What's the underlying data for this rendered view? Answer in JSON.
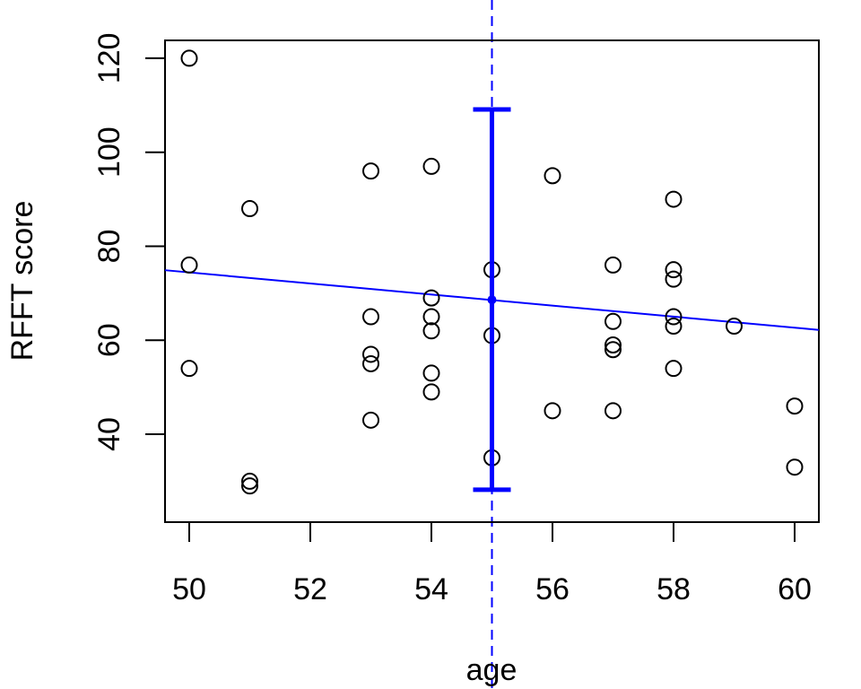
{
  "chart_data": {
    "type": "scatter",
    "title": "",
    "xlabel": "age",
    "ylabel": "RFFT score",
    "xlim": [
      49.6,
      60.4
    ],
    "ylim": [
      21.3,
      123.8
    ],
    "x_ticks": [
      50,
      52,
      54,
      56,
      58,
      60
    ],
    "y_ticks": [
      40,
      60,
      80,
      100,
      120
    ],
    "grid": false,
    "legend": "none",
    "points": [
      {
        "x": 50,
        "y": 120
      },
      {
        "x": 50,
        "y": 76
      },
      {
        "x": 50,
        "y": 54
      },
      {
        "x": 51,
        "y": 88
      },
      {
        "x": 51,
        "y": 30
      },
      {
        "x": 51,
        "y": 29
      },
      {
        "x": 53,
        "y": 96
      },
      {
        "x": 53,
        "y": 65
      },
      {
        "x": 53,
        "y": 57
      },
      {
        "x": 53,
        "y": 55
      },
      {
        "x": 53,
        "y": 43
      },
      {
        "x": 54,
        "y": 97
      },
      {
        "x": 54,
        "y": 69
      },
      {
        "x": 54,
        "y": 65
      },
      {
        "x": 54,
        "y": 62
      },
      {
        "x": 54,
        "y": 53
      },
      {
        "x": 54,
        "y": 49
      },
      {
        "x": 55,
        "y": 75
      },
      {
        "x": 55,
        "y": 61
      },
      {
        "x": 55,
        "y": 35
      },
      {
        "x": 56,
        "y": 95
      },
      {
        "x": 56,
        "y": 45
      },
      {
        "x": 57,
        "y": 76
      },
      {
        "x": 57,
        "y": 64
      },
      {
        "x": 57,
        "y": 59
      },
      {
        "x": 57,
        "y": 58
      },
      {
        "x": 57,
        "y": 45
      },
      {
        "x": 58,
        "y": 90
      },
      {
        "x": 58,
        "y": 75
      },
      {
        "x": 58,
        "y": 73
      },
      {
        "x": 58,
        "y": 65
      },
      {
        "x": 58,
        "y": 63
      },
      {
        "x": 58,
        "y": 54
      },
      {
        "x": 59,
        "y": 63
      },
      {
        "x": 60,
        "y": 46
      },
      {
        "x": 60,
        "y": 33
      }
    ],
    "regression_line": {
      "x_start": 49.6,
      "y_start": 74.9,
      "x_end": 60.4,
      "y_end": 62.2,
      "color": "#0000ff"
    },
    "reference_line": {
      "x": 55,
      "style": "dashed",
      "color": "#0000ff"
    },
    "interval": {
      "x": 55,
      "center": 68.6,
      "lower": 28.2,
      "upper": 109.1,
      "color": "#0000ff"
    },
    "colors": {
      "points": "#000000",
      "accent": "#0000ff"
    }
  }
}
